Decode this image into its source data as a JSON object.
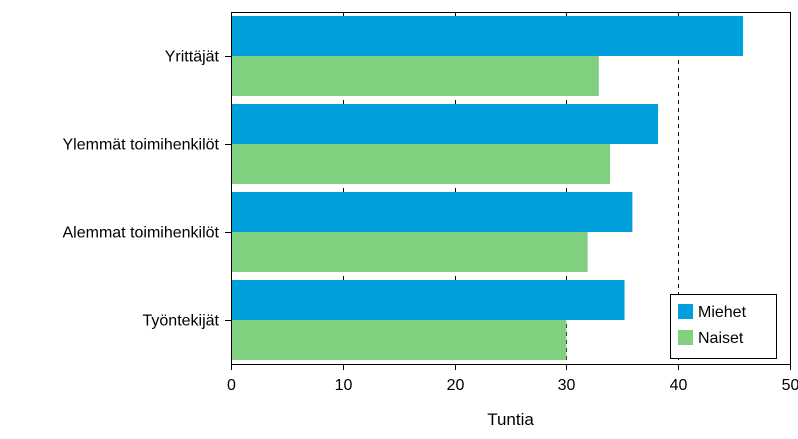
{
  "chart_data": {
    "type": "bar",
    "orientation": "horizontal",
    "categories": [
      "Yrittäjät",
      "Ylemmät toimihenkilöt",
      "Alemmat toimihenkilöt",
      "Työntekijät"
    ],
    "series": [
      {
        "name": "Miehet",
        "values": [
          45.8,
          38.2,
          35.9,
          35.2
        ],
        "color": "#00a0dc"
      },
      {
        "name": "Naiset",
        "values": [
          32.9,
          33.9,
          31.9,
          30.0
        ],
        "color": "#80d080"
      }
    ],
    "xlabel": "Tuntia",
    "xlim": [
      0,
      50
    ],
    "xticks": [
      0,
      10,
      20,
      30,
      40,
      50
    ],
    "grid": "vertical dashed",
    "legend_position": "bottom-right"
  }
}
